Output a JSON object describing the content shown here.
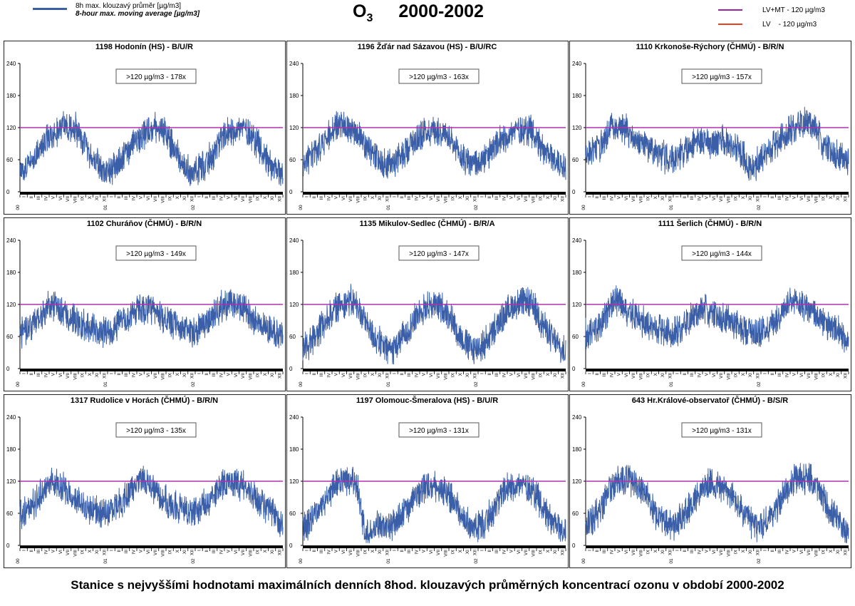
{
  "header": {
    "legend_line1": "8h max. klouzavý průměr [µg/m3]",
    "legend_line2": "8-hour max. moving average [µg/m3]",
    "title_symbol": "O",
    "title_sub": "3",
    "title_years": "2000-2002",
    "limit_legend": [
      {
        "label": "LV+MT - 120 µg/m3",
        "color": "#a020a0"
      },
      {
        "label": "LV    - 120 µg/m3",
        "color": "#e8401c"
      }
    ],
    "series_color": "#3a5fa8",
    "limit_color": "#b030b0"
  },
  "caption": "Stanice s nejvyššími hodnotami maximálních denních 8hod. klouzavých průměrných koncentrací ozonu v období 2000-2002",
  "chart_data": [
    {
      "type": "line",
      "title": "1198 Hodonín (HS) - B/U/R",
      "annotation": ">120 µg/m3 - 178x",
      "ylim": [
        0,
        240
      ],
      "yticks": [
        0,
        60,
        120,
        180,
        240
      ],
      "limit": 120,
      "x_ticks": [
        "I",
        "II",
        "III",
        "IV",
        "V",
        "VI",
        "VII",
        "VIII",
        "IX",
        "X",
        "XI",
        "XII",
        "I",
        "II",
        "III",
        "IV",
        "V",
        "VI",
        "VII",
        "VIII",
        "IX",
        "X",
        "XI",
        "XII",
        "I",
        "II",
        "III",
        "IV",
        "V",
        "VI",
        "VII",
        "VIII",
        "IX",
        "X",
        "XI",
        "XII"
      ],
      "year_labels": [
        "00",
        "01",
        "02"
      ],
      "monthly_mean": [
        42,
        58,
        75,
        95,
        110,
        118,
        122,
        120,
        98,
        72,
        55,
        38,
        40,
        52,
        70,
        92,
        105,
        115,
        120,
        118,
        95,
        70,
        50,
        35,
        42,
        55,
        72,
        95,
        108,
        118,
        120,
        112,
        90,
        68,
        48,
        35
      ]
    },
    {
      "type": "line",
      "title": "1196 Žďár nad Sázavou (HS) - B/U/RC",
      "annotation": ">120 µg/m3 - 163x",
      "ylim": [
        0,
        240
      ],
      "yticks": [
        0,
        60,
        120,
        180,
        240
      ],
      "limit": 120,
      "x_ticks": [
        "I",
        "II",
        "III",
        "IV",
        "V",
        "VI",
        "VII",
        "VIII",
        "IX",
        "X",
        "XI",
        "XII",
        "I",
        "II",
        "III",
        "IV",
        "V",
        "VI",
        "VII",
        "VIII",
        "IX",
        "X",
        "XI",
        "XII",
        "I",
        "II",
        "III",
        "IV",
        "V",
        "VI",
        "VII",
        "VIII",
        "IX",
        "X",
        "XI",
        "XII"
      ],
      "year_labels": [
        "00",
        "01",
        "02"
      ],
      "monthly_mean": [
        55,
        68,
        85,
        105,
        120,
        125,
        122,
        110,
        88,
        70,
        58,
        50,
        55,
        68,
        85,
        100,
        110,
        115,
        115,
        108,
        85,
        68,
        58,
        52,
        55,
        70,
        85,
        100,
        110,
        118,
        118,
        112,
        88,
        70,
        60,
        50
      ]
    },
    {
      "type": "line",
      "title": "1110 Krkonoše-Rýchory (ČHMÚ) - B/R/N",
      "annotation": ">120 µg/m3 - 157x",
      "ylim": [
        0,
        240
      ],
      "yticks": [
        0,
        60,
        120,
        180,
        240
      ],
      "limit": 120,
      "x_ticks": [
        "I",
        "II",
        "III",
        "IV",
        "V",
        "VI",
        "VII",
        "VIII",
        "IX",
        "X",
        "XI",
        "XII",
        "I",
        "II",
        "III",
        "IV",
        "V",
        "VI",
        "VII",
        "VIII",
        "IX",
        "X",
        "XI",
        "XII",
        "I",
        "II",
        "III",
        "IV",
        "V",
        "VI",
        "VII",
        "VIII",
        "IX",
        "X",
        "XI",
        "XII"
      ],
      "year_labels": [
        "00",
        "01",
        "02"
      ],
      "monthly_mean": [
        75,
        82,
        95,
        120,
        125,
        115,
        100,
        90,
        80,
        72,
        65,
        62,
        68,
        78,
        90,
        95,
        90,
        88,
        95,
        92,
        80,
        72,
        40,
        55,
        70,
        82,
        95,
        110,
        120,
        128,
        130,
        115,
        88,
        75,
        68,
        60
      ]
    },
    {
      "type": "line",
      "title": "1102 Churáňov (ČHMÚ) - B/R/N",
      "annotation": ">120 µg/m3 - 149x",
      "ylim": [
        0,
        240
      ],
      "yticks": [
        0,
        60,
        120,
        180,
        240
      ],
      "limit": 120,
      "x_ticks": [
        "I",
        "II",
        "III",
        "IV",
        "V",
        "VI",
        "VII",
        "VIII",
        "IX",
        "X",
        "XI",
        "XII",
        "I",
        "II",
        "III",
        "IV",
        "V",
        "VI",
        "VII",
        "VIII",
        "IX",
        "X",
        "XI",
        "XII",
        "I",
        "II",
        "III",
        "IV",
        "V",
        "VI",
        "VII",
        "VIII",
        "IX",
        "X",
        "XI",
        "XII"
      ],
      "year_labels": [
        "00",
        "01",
        "02"
      ],
      "monthly_mean": [
        70,
        78,
        92,
        110,
        120,
        112,
        100,
        92,
        82,
        76,
        72,
        68,
        72,
        82,
        92,
        105,
        112,
        110,
        105,
        98,
        85,
        78,
        72,
        70,
        75,
        88,
        100,
        115,
        120,
        118,
        112,
        100,
        88,
        80,
        72,
        62
      ]
    },
    {
      "type": "line",
      "title": "1135 Mikulov-Sedlec (ČHMÚ) - B/R/A",
      "annotation": ">120 µg/m3 - 147x",
      "ylim": [
        0,
        240
      ],
      "yticks": [
        0,
        60,
        120,
        180,
        240
      ],
      "limit": 120,
      "x_ticks": [
        "I",
        "II",
        "III",
        "IV",
        "V",
        "VI",
        "VII",
        "VIII",
        "IX",
        "X",
        "XI",
        "XII",
        "I",
        "II",
        "III",
        "IV",
        "V",
        "VI",
        "VII",
        "VIII",
        "IX",
        "X",
        "XI",
        "XII",
        "I",
        "II",
        "III",
        "IV",
        "V",
        "VI",
        "VII",
        "VIII",
        "IX",
        "X",
        "XI",
        "XII"
      ],
      "year_labels": [
        "00",
        "01",
        "02"
      ],
      "monthly_mean": [
        38,
        55,
        75,
        98,
        112,
        125,
        128,
        115,
        90,
        65,
        48,
        35,
        40,
        55,
        75,
        98,
        112,
        120,
        118,
        110,
        88,
        62,
        45,
        35,
        42,
        58,
        78,
        100,
        115,
        122,
        125,
        118,
        92,
        68,
        50,
        30
      ]
    },
    {
      "type": "line",
      "title": "1111 Šerlich (ČHMÚ) - B/R/N",
      "annotation": ">120 µg/m3 - 144x",
      "ylim": [
        0,
        240
      ],
      "yticks": [
        0,
        60,
        120,
        180,
        240
      ],
      "limit": 120,
      "x_ticks": [
        "I",
        "II",
        "III",
        "IV",
        "V",
        "VI",
        "VII",
        "VIII",
        "IX",
        "X",
        "XI",
        "XII",
        "I",
        "II",
        "III",
        "IV",
        "V",
        "VI",
        "VII",
        "VIII",
        "IX",
        "X",
        "XI",
        "XII",
        "I",
        "II",
        "III",
        "IV",
        "V",
        "VI",
        "VII",
        "VIII",
        "IX",
        "X",
        "XI",
        "XII"
      ],
      "year_labels": [
        "00",
        "01",
        "02"
      ],
      "monthly_mean": [
        68,
        78,
        92,
        118,
        125,
        112,
        100,
        92,
        82,
        75,
        70,
        66,
        70,
        82,
        95,
        105,
        110,
        100,
        95,
        92,
        82,
        75,
        72,
        68,
        72,
        85,
        100,
        115,
        122,
        120,
        112,
        100,
        85,
        75,
        68,
        58
      ]
    },
    {
      "type": "line",
      "title": "1317 Rudolice v Horách (ČHMÚ) - B/R/N",
      "annotation": ">120 µg/m3 - 135x",
      "ylim": [
        0,
        240
      ],
      "yticks": [
        0,
        60,
        120,
        180,
        240
      ],
      "limit": 120,
      "x_ticks": [
        "I",
        "II",
        "III",
        "IV",
        "V",
        "VI",
        "VII",
        "VIII",
        "IX",
        "X",
        "XI",
        "XII",
        "I",
        "II",
        "III",
        "IV",
        "V",
        "VI",
        "VII",
        "VIII",
        "IX",
        "X",
        "XI",
        "XII",
        "I",
        "II",
        "III",
        "IV",
        "V",
        "VI",
        "VII",
        "VIII",
        "IX",
        "X",
        "XI",
        "XII"
      ],
      "year_labels": [
        "00",
        "01",
        "02"
      ],
      "monthly_mean": [
        62,
        72,
        88,
        112,
        120,
        110,
        100,
        90,
        80,
        72,
        65,
        58,
        62,
        75,
        90,
        110,
        122,
        118,
        105,
        92,
        80,
        72,
        68,
        62,
        65,
        78,
        95,
        112,
        120,
        118,
        112,
        100,
        85,
        72,
        60,
        45
      ]
    },
    {
      "type": "line",
      "title": "1197 Olomouc-Šmeralova (HS) - B/U/R",
      "annotation": ">120 µg/m3 - 131x",
      "ylim": [
        0,
        240
      ],
      "yticks": [
        0,
        60,
        120,
        180,
        240
      ],
      "limit": 120,
      "x_ticks": [
        "I",
        "II",
        "III",
        "IV",
        "V",
        "VI",
        "VII",
        "VIII",
        "IX",
        "X",
        "XI",
        "XII",
        "I",
        "II",
        "III",
        "IV",
        "V",
        "VI",
        "VII",
        "VIII",
        "IX",
        "X",
        "XI",
        "XII",
        "I",
        "II",
        "III",
        "IV",
        "V",
        "VI",
        "VII",
        "VIII",
        "IX",
        "X",
        "XI",
        "XII"
      ],
      "year_labels": [
        "00",
        "01",
        "02"
      ],
      "monthly_mean": [
        35,
        55,
        72,
        95,
        110,
        118,
        120,
        112,
        16,
        30,
        40,
        35,
        38,
        55,
        72,
        95,
        110,
        112,
        108,
        100,
        85,
        62,
        45,
        32,
        38,
        55,
        75,
        98,
        110,
        115,
        112,
        105,
        80,
        58,
        40,
        28
      ]
    },
    {
      "type": "line",
      "title": "643 Hr.Králové-observatoř (ČHMÚ) - B/S/R",
      "annotation": ">120 µg/m3 - 131x",
      "ylim": [
        0,
        240
      ],
      "yticks": [
        0,
        60,
        120,
        180,
        240
      ],
      "limit": 120,
      "x_ticks": [
        "I",
        "II",
        "III",
        "IV",
        "V",
        "VI",
        "VII",
        "VIII",
        "IX",
        "X",
        "XI",
        "XII",
        "I",
        "II",
        "III",
        "IV",
        "V",
        "VI",
        "VII",
        "VIII",
        "IX",
        "X",
        "XI",
        "XII",
        "I",
        "II",
        "III",
        "IV",
        "V",
        "VI",
        "VII",
        "VIII",
        "IX",
        "X",
        "XI",
        "XII"
      ],
      "year_labels": [
        "00",
        "01",
        "02"
      ],
      "monthly_mean": [
        45,
        60,
        80,
        105,
        120,
        125,
        120,
        108,
        85,
        62,
        48,
        38,
        42,
        58,
        78,
        100,
        112,
        115,
        110,
        100,
        82,
        60,
        45,
        35,
        42,
        58,
        80,
        105,
        120,
        128,
        125,
        112,
        88,
        62,
        45,
        30
      ]
    }
  ]
}
